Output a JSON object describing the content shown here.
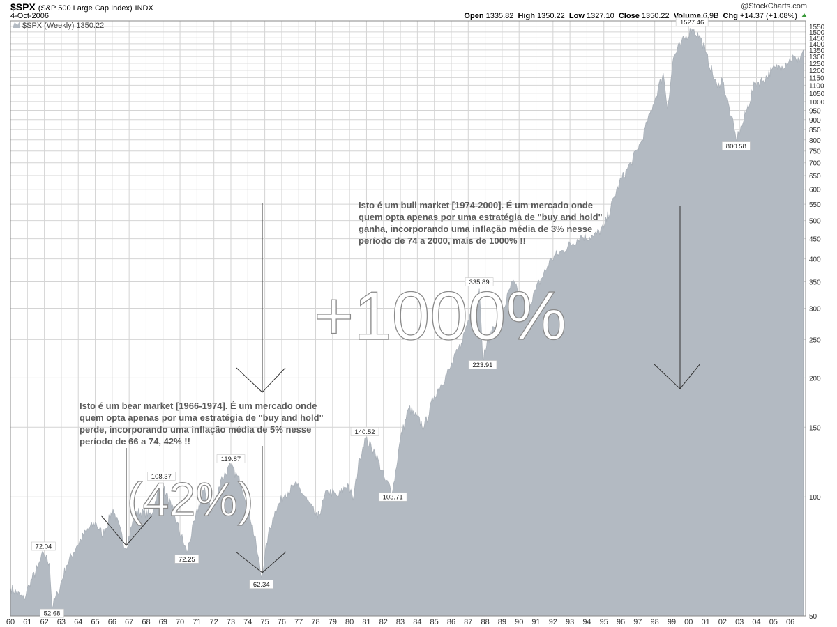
{
  "header": {
    "symbol": "$SPX",
    "description": "(S&P 500 Large Cap Index)",
    "exchange": "INDX",
    "date": "4-Oct-2006",
    "brand": "@StockCharts.com",
    "open_label": "Open",
    "open_value": "1335.82",
    "high_label": "High",
    "high_value": "1350.22",
    "low_label": "Low",
    "low_value": "1327.10",
    "close_label": "Close",
    "close_value": "1350.22",
    "volume_label": "Volume",
    "volume_value": "6.9B",
    "chg_label": "Chg",
    "chg_value": "+14.37 (+1.08%)"
  },
  "legend": {
    "text": "$SPX (Weekly) 1350.22"
  },
  "annotations": {
    "bull_text": [
      "Isto é um bull market [1974-2000]. É um mercado onde",
      "quem opta apenas por uma estratégia de \"buy and hold\"",
      "ganha, incorporando uma inflação média de 3% nesse",
      "período de 74 a 2000, mais de 1000% !!"
    ],
    "bear_text": [
      "Isto é um bear market [1966-1974]. É um mercado onde",
      "quem opta apenas por uma estratégia de \"buy and hold\"",
      "perde, incorporando uma inflação média de 5% nesse",
      "período de 66 a 74, 42% !!"
    ],
    "bull_big": "+1000%",
    "bear_big": "(42%)"
  },
  "chart_data": {
    "type": "area",
    "series": [
      {
        "name": "$SPX (Weekly)",
        "points": [
          [
            1960.0,
            59
          ],
          [
            1960.8,
            55
          ],
          [
            1961.1,
            60
          ],
          [
            1961.6,
            66
          ],
          [
            1961.95,
            72.04
          ],
          [
            1962.3,
            68
          ],
          [
            1962.45,
            52.68
          ],
          [
            1962.8,
            57
          ],
          [
            1963.3,
            67
          ],
          [
            1963.9,
            75
          ],
          [
            1964.5,
            82
          ],
          [
            1965.0,
            86
          ],
          [
            1965.45,
            80
          ],
          [
            1966.05,
            93
          ],
          [
            1966.8,
            74
          ],
          [
            1967.4,
            92
          ],
          [
            1968.3,
            90
          ],
          [
            1968.9,
            108.37
          ],
          [
            1969.5,
            94
          ],
          [
            1970.4,
            72.25
          ],
          [
            1970.9,
            88
          ],
          [
            1971.4,
            104
          ],
          [
            1971.9,
            92
          ],
          [
            1972.4,
            110
          ],
          [
            1973.0,
            119.87
          ],
          [
            1973.6,
            108
          ],
          [
            1974.0,
            96
          ],
          [
            1974.5,
            75
          ],
          [
            1974.8,
            62.34
          ],
          [
            1975.2,
            80
          ],
          [
            1975.6,
            92
          ],
          [
            1976.2,
            102
          ],
          [
            1976.9,
            107
          ],
          [
            1977.5,
            98
          ],
          [
            1978.1,
            88
          ],
          [
            1978.7,
            104
          ],
          [
            1979.3,
            100
          ],
          [
            1979.9,
            108
          ],
          [
            1980.2,
            98
          ],
          [
            1980.6,
            125
          ],
          [
            1980.9,
            140.52
          ],
          [
            1981.5,
            130
          ],
          [
            1982.1,
            110
          ],
          [
            1982.55,
            103.71
          ],
          [
            1983.0,
            140
          ],
          [
            1983.5,
            168
          ],
          [
            1984.4,
            150
          ],
          [
            1985.0,
            180
          ],
          [
            1985.9,
            210
          ],
          [
            1986.6,
            245
          ],
          [
            1987.1,
            290
          ],
          [
            1987.65,
            335.89
          ],
          [
            1987.85,
            223.91
          ],
          [
            1988.4,
            265
          ],
          [
            1989.0,
            290
          ],
          [
            1989.6,
            350
          ],
          [
            1990.5,
            300
          ],
          [
            1991.0,
            335
          ],
          [
            1991.9,
            400
          ],
          [
            1992.6,
            420
          ],
          [
            1993.6,
            455
          ],
          [
            1994.4,
            455
          ],
          [
            1995.0,
            480
          ],
          [
            1995.9,
            620
          ],
          [
            1996.6,
            700
          ],
          [
            1997.2,
            790
          ],
          [
            1997.9,
            980
          ],
          [
            1998.5,
            1180
          ],
          [
            1998.75,
            960
          ],
          [
            1999.1,
            1290
          ],
          [
            1999.5,
            1390
          ],
          [
            2000.2,
            1527.46
          ],
          [
            2000.7,
            1450
          ],
          [
            2001.0,
            1330
          ],
          [
            2001.7,
            1080
          ],
          [
            2001.95,
            1150
          ],
          [
            2002.5,
            920
          ],
          [
            2002.8,
            800.58
          ],
          [
            2003.2,
            880
          ],
          [
            2003.9,
            1110
          ],
          [
            2004.4,
            1130
          ],
          [
            2004.9,
            1200
          ],
          [
            2005.5,
            1230
          ],
          [
            2006.2,
            1300
          ],
          [
            2006.4,
            1250
          ],
          [
            2006.76,
            1350.22
          ]
        ]
      }
    ],
    "labelled_points": [
      {
        "x": 1961.95,
        "y": 72.04,
        "label": "72.04",
        "pos": "above"
      },
      {
        "x": 1962.45,
        "y": 52.68,
        "label": "52.68",
        "pos": "below"
      },
      {
        "x": 1968.9,
        "y": 108.37,
        "label": "108.37",
        "pos": "above"
      },
      {
        "x": 1970.4,
        "y": 72.25,
        "label": "72.25",
        "pos": "below"
      },
      {
        "x": 1973.0,
        "y": 119.87,
        "label": "119.87",
        "pos": "above"
      },
      {
        "x": 1974.8,
        "y": 62.34,
        "label": "62.34",
        "pos": "below"
      },
      {
        "x": 1980.9,
        "y": 140.52,
        "label": "140.52",
        "pos": "above"
      },
      {
        "x": 1982.55,
        "y": 103.71,
        "label": "103.71",
        "pos": "below"
      },
      {
        "x": 1987.65,
        "y": 335.89,
        "label": "335.89",
        "pos": "above"
      },
      {
        "x": 1987.85,
        "y": 223.91,
        "label": "223.91",
        "pos": "below"
      },
      {
        "x": 2000.2,
        "y": 1527.46,
        "label": "1527.46",
        "pos": "above"
      },
      {
        "x": 2002.8,
        "y": 800.58,
        "label": "800.58",
        "pos": "below"
      }
    ],
    "x_ticks": [
      "60",
      "61",
      "62",
      "63",
      "64",
      "65",
      "66",
      "67",
      "68",
      "69",
      "70",
      "71",
      "72",
      "73",
      "74",
      "75",
      "76",
      "77",
      "78",
      "79",
      "80",
      "81",
      "82",
      "83",
      "84",
      "85",
      "86",
      "87",
      "88",
      "89",
      "90",
      "91",
      "92",
      "93",
      "94",
      "95",
      "96",
      "97",
      "98",
      "99",
      "00",
      "01",
      "02",
      "03",
      "04",
      "05",
      "06"
    ],
    "y_ticks": [
      50,
      100,
      150,
      200,
      250,
      300,
      350,
      400,
      450,
      500,
      550,
      600,
      650,
      700,
      750,
      800,
      850,
      900,
      950,
      1000,
      1050,
      1100,
      1150,
      1200,
      1250,
      1300,
      1350,
      1400,
      1450,
      1500,
      1550
    ],
    "y_scale": "log",
    "ylim": [
      50,
      1600
    ],
    "xlim": [
      1960.0,
      2006.9
    ],
    "grid": true,
    "legend": "top-left",
    "colors": {
      "fill": "#b3bac2",
      "grid": "#d4d4d4",
      "text": "#555555"
    }
  }
}
